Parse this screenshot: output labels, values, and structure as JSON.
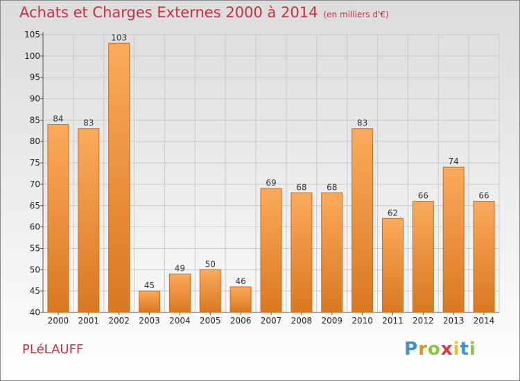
{
  "chart_data": {
    "type": "bar",
    "title": "Achats et Charges Externes 2000 à 2014",
    "subtitle": "(en milliers d'€)",
    "xlabel": "",
    "ylabel": "",
    "categories": [
      "2000",
      "2001",
      "2002",
      "2003",
      "2004",
      "2005",
      "2006",
      "2007",
      "2008",
      "2009",
      "2010",
      "2011",
      "2012",
      "2013",
      "2014"
    ],
    "values": [
      84,
      83,
      103,
      45,
      49,
      50,
      46,
      69,
      68,
      68,
      83,
      62,
      66,
      74,
      66
    ],
    "data_labels": [
      "84",
      "83",
      "103",
      "45",
      "49",
      "50",
      "46",
      "69",
      "68",
      "68",
      "83",
      "62",
      "66",
      "74",
      "66"
    ],
    "ylim": [
      40,
      105
    ],
    "yticks": [
      40,
      45,
      50,
      55,
      60,
      65,
      70,
      75,
      80,
      85,
      90,
      95,
      100,
      105
    ],
    "grid": true,
    "legend": "none",
    "colors": {
      "bar_light": "#fbaa5c",
      "bar_dark": "#d97821",
      "bar_edge": "#c96a18",
      "grid": "#c9c9c9",
      "title": "#c8303f"
    }
  },
  "commune": "PLéLAUFF",
  "brand": {
    "letters": [
      "P",
      "r",
      "o",
      "x",
      "i",
      "t",
      "i"
    ],
    "colors": [
      "#3a8fd6",
      "#f28c1e",
      "#8cc63f",
      "#e33b3b",
      "#f2c01e",
      "#3a8fd6",
      "#8cc63f"
    ]
  }
}
